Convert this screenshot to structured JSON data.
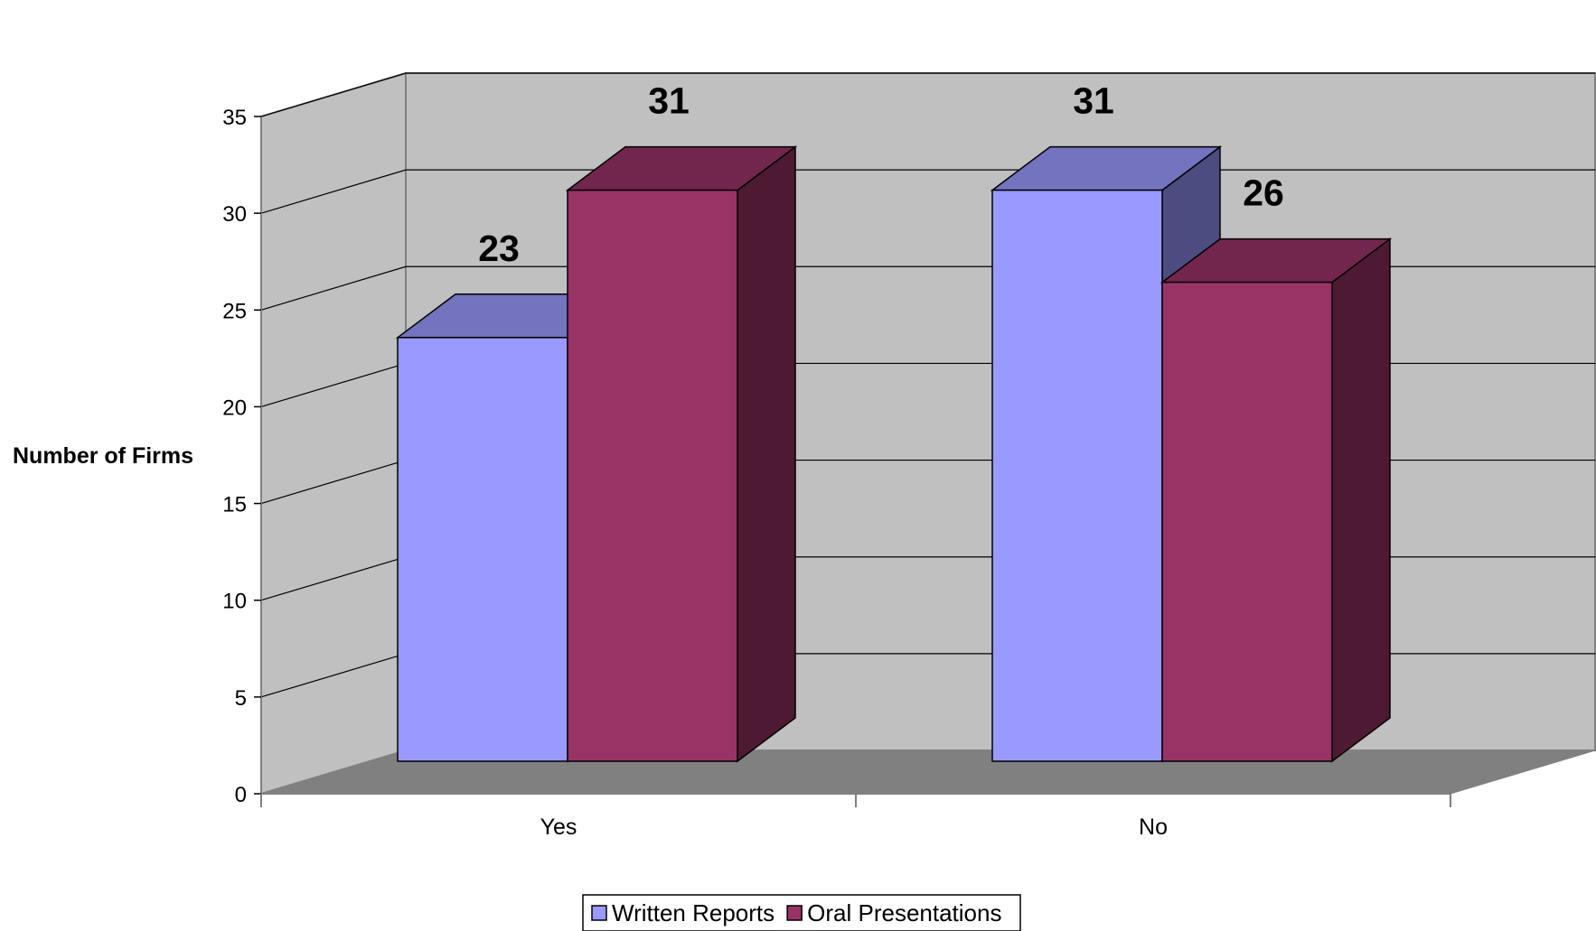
{
  "chart_data": {
    "type": "bar",
    "categories": [
      "Yes",
      "No"
    ],
    "series": [
      {
        "name": "Written Reports",
        "values": [
          23,
          31
        ],
        "color": "#9999FF",
        "top_color": "#7373BF",
        "side_color": "#4C4C80"
      },
      {
        "name": "Oral Presentations",
        "values": [
          31,
          26
        ],
        "color": "#993366",
        "top_color": "#73264D",
        "side_color": "#4D1933"
      }
    ],
    "title": "",
    "xlabel": "",
    "ylabel": "Number of Firms",
    "ylim": [
      0,
      35
    ],
    "yticks": [
      0,
      5,
      10,
      15,
      20,
      25,
      30,
      35
    ],
    "grid": true,
    "legend_position": "bottom-center",
    "data_labels": true,
    "wall_color": "#C0C0C0",
    "floor_color": "#808080"
  }
}
